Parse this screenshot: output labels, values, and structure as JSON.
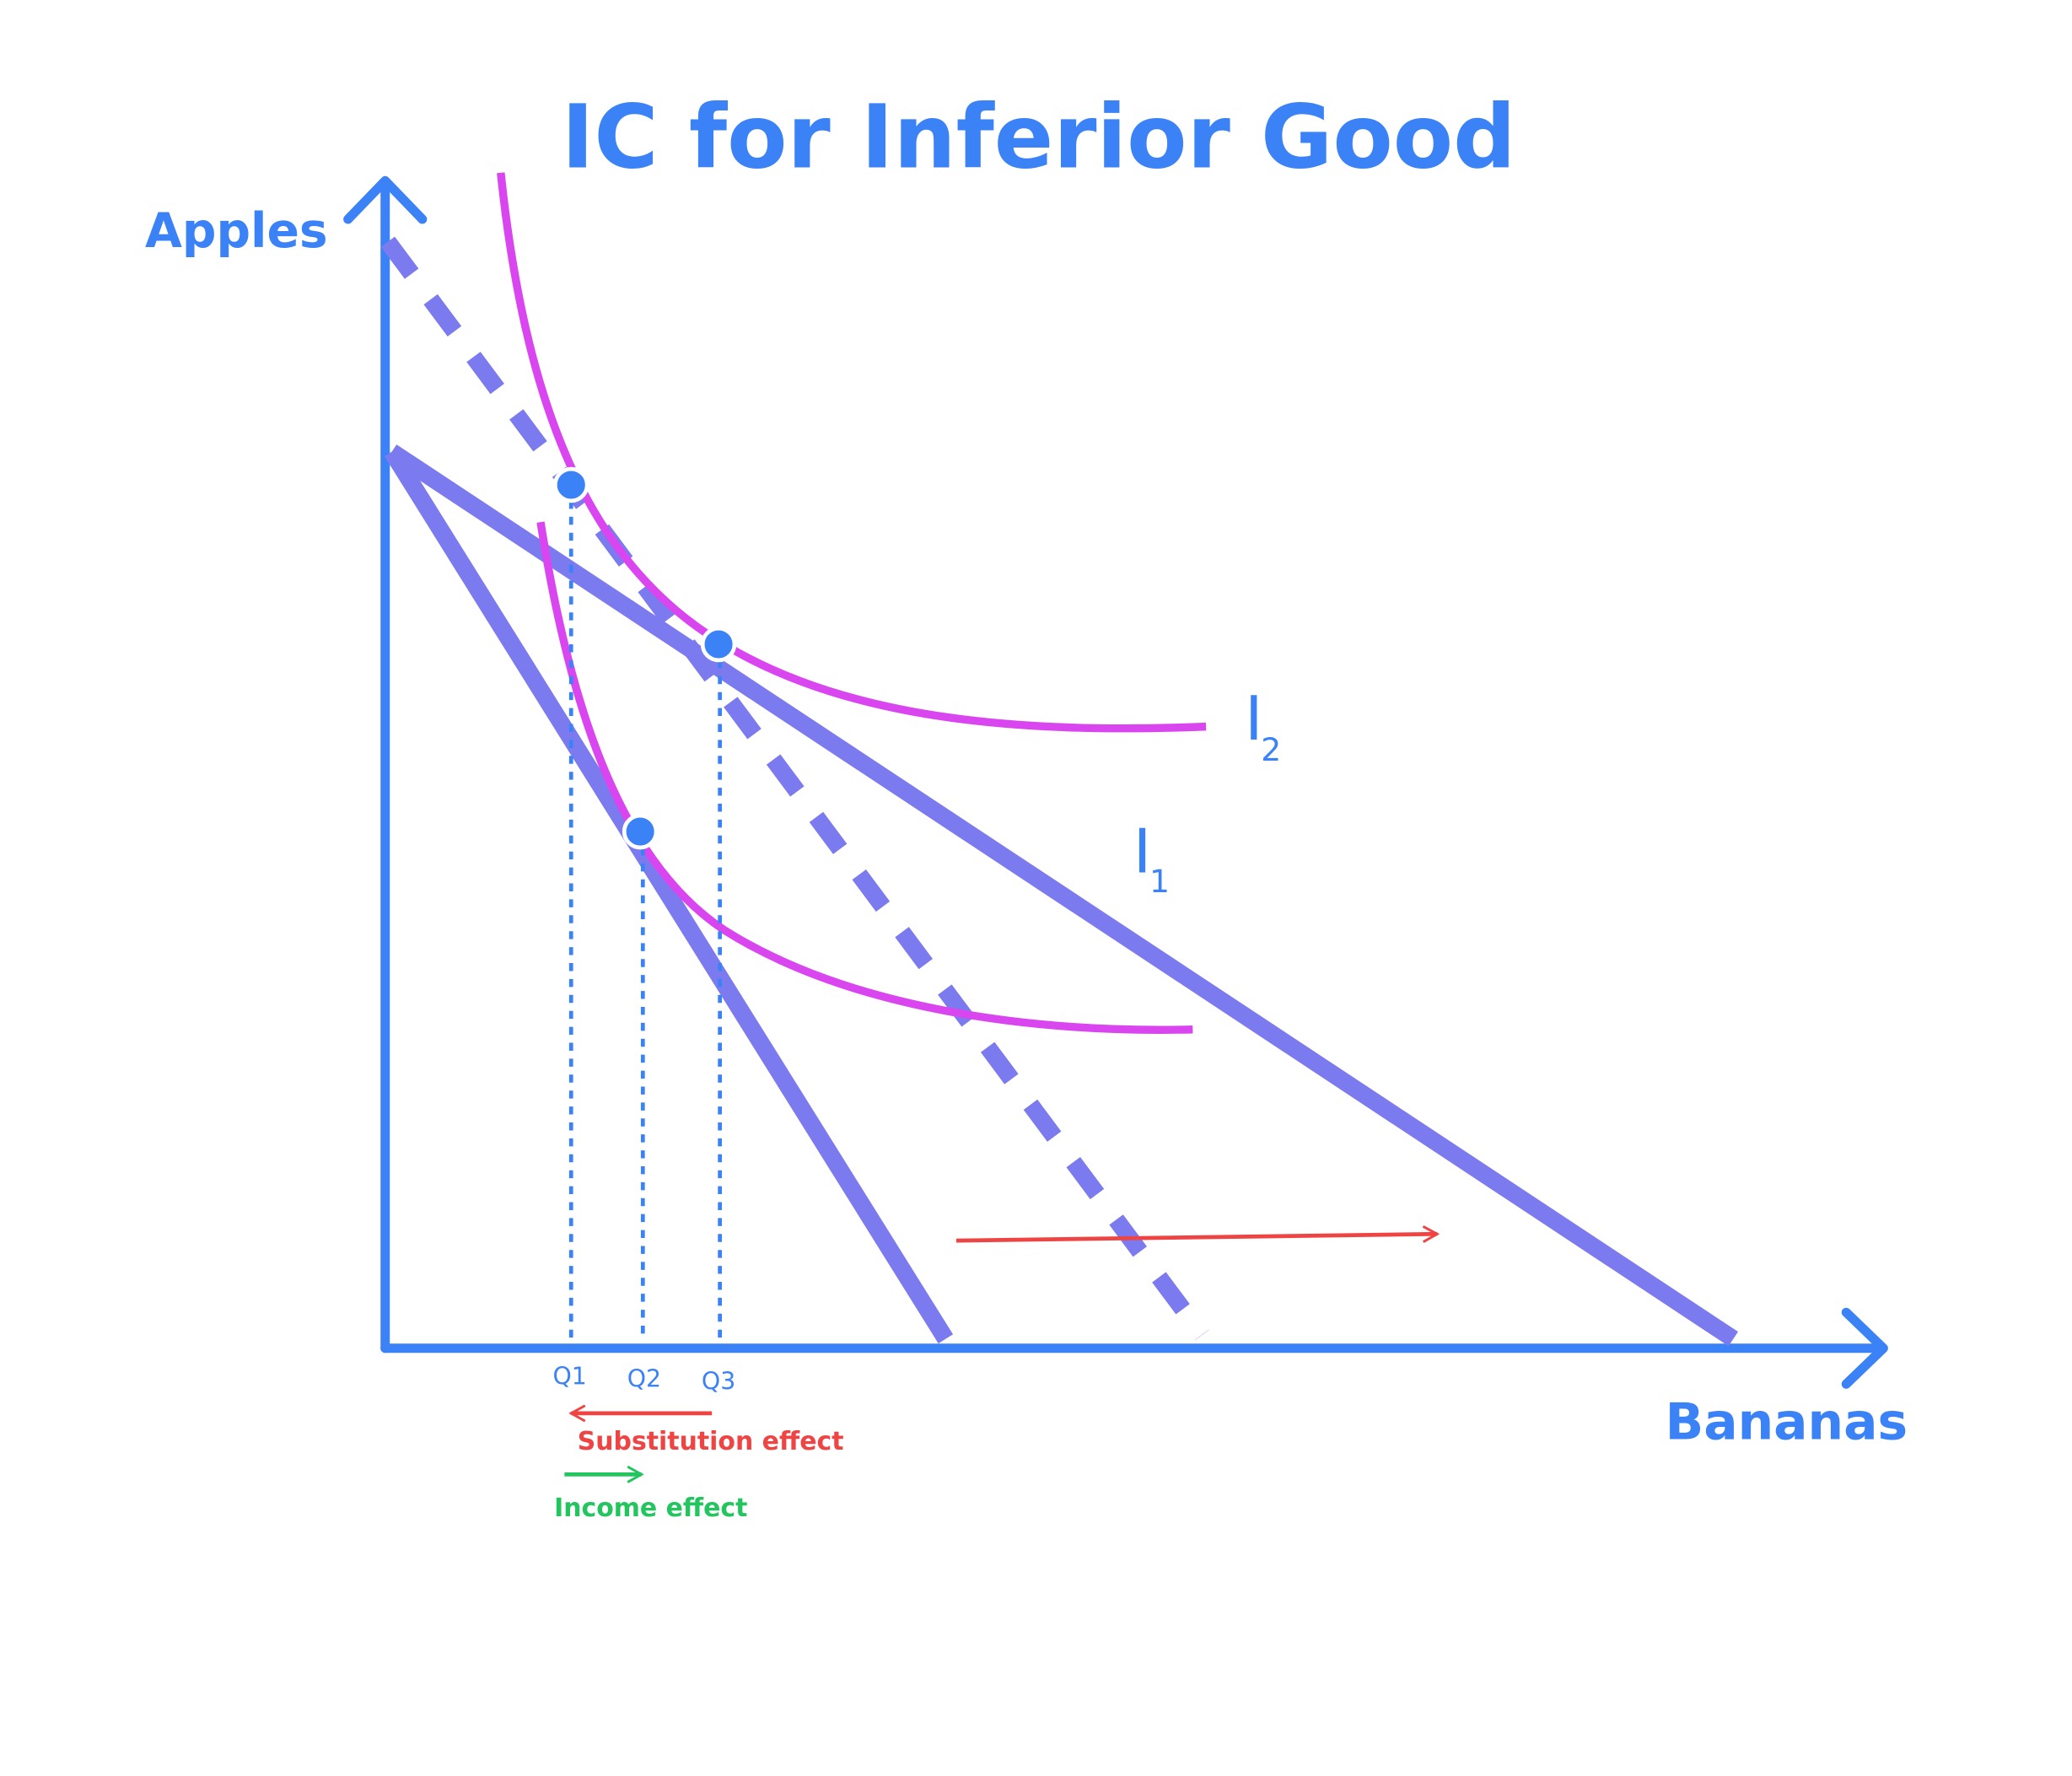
{
  "title": "IC for Inferior Good",
  "axes": {
    "y": "Apples",
    "x": "Bananas"
  },
  "curves": [
    {
      "label": "I",
      "subscript": "2"
    },
    {
      "label": "I",
      "subscript": "1"
    }
  ],
  "quantities": [
    "Q1",
    "Q2",
    "Q3"
  ],
  "effects": {
    "substitution": "Substitution effect",
    "income": "Income effect"
  }
}
